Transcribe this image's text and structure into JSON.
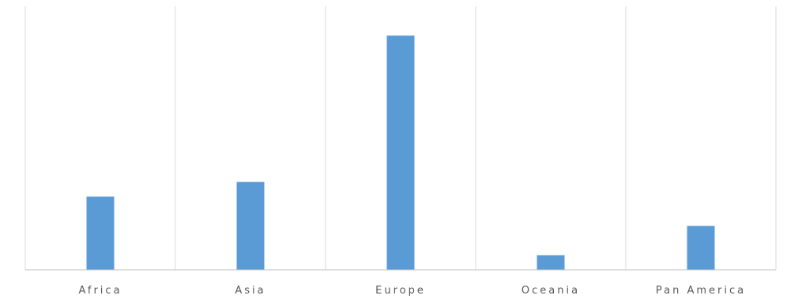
{
  "chart_data": {
    "type": "bar",
    "categories": [
      "Africa",
      "Asia",
      "Europe",
      "Oceania",
      "Pan America"
    ],
    "values": [
      25,
      30,
      80,
      5,
      15
    ],
    "ylim": [
      0,
      90
    ],
    "grid": "vertical-category-separators",
    "legend": "none",
    "colors": {
      "bar": "#5b9bd5",
      "grid": "#d9d9d9",
      "axis": "#bfbfbf",
      "text": "#595959"
    }
  }
}
